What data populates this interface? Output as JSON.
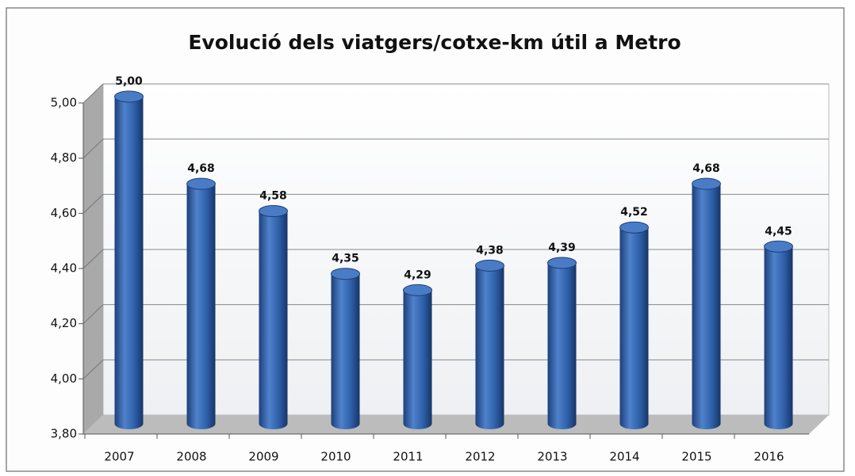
{
  "chart_data": {
    "type": "bar",
    "title": "Evolució dels viatgers/cotxe-km útil a Metro",
    "categories": [
      "2007",
      "2008",
      "2009",
      "2010",
      "2011",
      "2012",
      "2013",
      "2014",
      "2015",
      "2016"
    ],
    "values": [
      5.0,
      4.68,
      4.58,
      4.35,
      4.29,
      4.38,
      4.39,
      4.52,
      4.68,
      4.45
    ],
    "value_labels": [
      "5,00",
      "4,68",
      "4,58",
      "4,35",
      "4,29",
      "4,38",
      "4,39",
      "4,52",
      "4,68",
      "4,45"
    ],
    "color": "#2e5fa9",
    "ylim": [
      3.8,
      5.0
    ],
    "yticks": [
      {
        "value": 3.8,
        "label": "3,80"
      },
      {
        "value": 4.0,
        "label": "4,00"
      },
      {
        "value": 4.2,
        "label": "4,20"
      },
      {
        "value": 4.4,
        "label": "4,40"
      },
      {
        "value": 4.6,
        "label": "4,60"
      },
      {
        "value": 4.8,
        "label": "4,80"
      },
      {
        "value": 5.0,
        "label": "5,00"
      }
    ],
    "grid": true
  }
}
